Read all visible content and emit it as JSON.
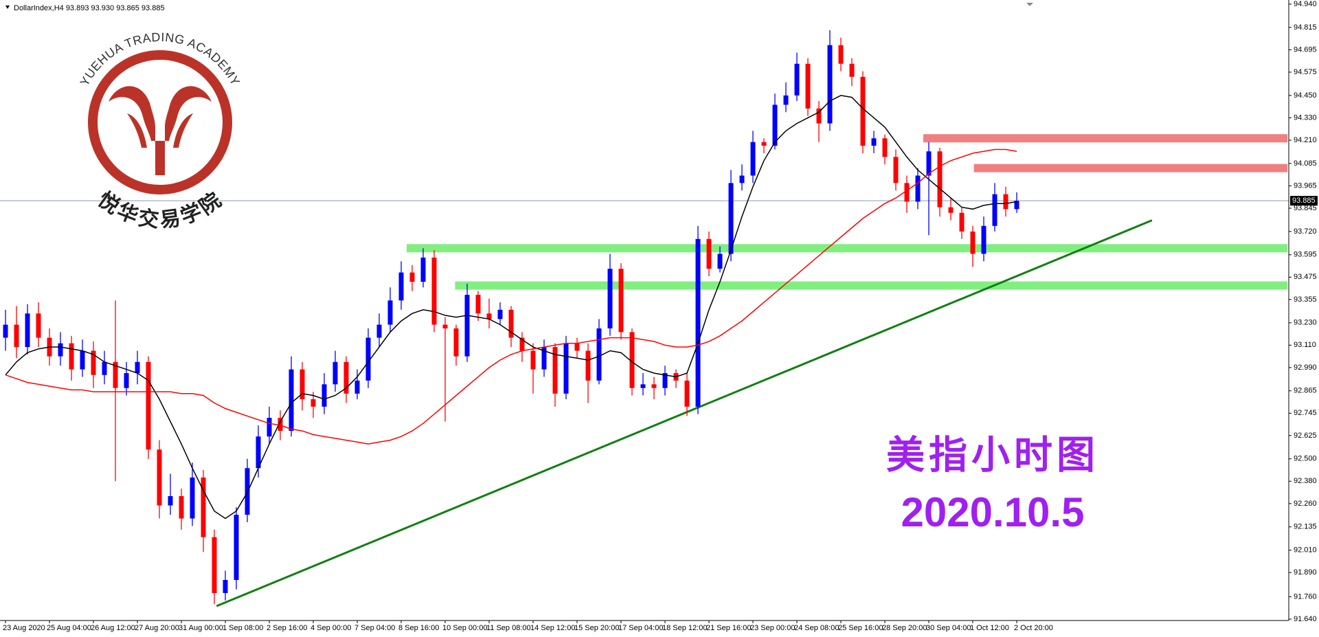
{
  "chart_data": {
    "type": "candlestick",
    "title": "DollarIndex,H4  93.893 93.930 93.865 93.885",
    "logo_text": "YUEHUA TRADING ACADEMY",
    "logo_text_cn": "悦华交易学院",
    "annotations": [
      "美指小时图",
      "2020.10.5"
    ],
    "up_color": "#0000ff",
    "down_color": "#ff0000",
    "grid": false,
    "ylim": [
      91.64,
      94.94
    ],
    "yticks": [
      {
        "value": 94.94,
        "label": "94.940"
      },
      94.815,
      94.695,
      94.575,
      {
        "value": 94.45,
        "label": "94.450"
      },
      {
        "value": 94.33,
        "label": "94.330"
      },
      {
        "value": 94.21,
        "label": "94.210"
      },
      94.085,
      93.965,
      93.845,
      {
        "value": 93.72,
        "label": "93.720"
      },
      93.595,
      93.475,
      93.355,
      {
        "value": 93.23,
        "label": "93.230"
      },
      {
        "value": 93.11,
        "label": "93.110"
      },
      {
        "value": 92.99,
        "label": "92.990"
      },
      92.865,
      92.745,
      92.625,
      {
        "value": 92.5,
        "label": "92.500"
      },
      {
        "value": 92.38,
        "label": "92.380"
      },
      {
        "value": 92.26,
        "label": "92.260"
      },
      92.135,
      {
        "value": 92.01,
        "label": "92.010"
      },
      {
        "value": 91.89,
        "label": "91.890"
      },
      {
        "value": 91.76,
        "label": "91.760"
      },
      {
        "value": 91.64,
        "label": "91.640"
      }
    ],
    "current_price": 93.885,
    "categories": [
      "23 Aug 2020",
      null,
      null,
      null,
      "25 Aug 04:00",
      null,
      null,
      null,
      "26 Aug 12:00",
      null,
      null,
      null,
      "27 Aug 20:00",
      null,
      null,
      null,
      "31 Aug 00:00",
      null,
      null,
      null,
      "1 Sep 08:00",
      null,
      null,
      null,
      "2 Sep 16:00",
      null,
      null,
      null,
      "4 Sep 00:00",
      null,
      null,
      null,
      "7 Sep 04:00",
      null,
      null,
      null,
      "8 Sep 16:00",
      null,
      null,
      null,
      "10 Sep 00:00",
      null,
      null,
      null,
      "11 Sep 08:00",
      null,
      null,
      null,
      "14 Sep 12:00",
      null,
      null,
      null,
      "15 Sep 20:00",
      null,
      null,
      null,
      "17 Sep 04:00",
      null,
      null,
      null,
      "18 Sep 12:00",
      null,
      null,
      null,
      "21 Sep 16:00",
      null,
      null,
      null,
      "23 Sep 00:00",
      null,
      null,
      null,
      "24 Sep 08:00",
      null,
      null,
      null,
      "25 Sep 16:00",
      null,
      null,
      null,
      "28 Sep 20:00",
      null,
      null,
      null,
      "30 Sep 04:00",
      null,
      null,
      null,
      "1 Oct 12:00",
      null,
      null,
      null,
      "2 Oct 20:00"
    ],
    "open": [
      93.15,
      93.22,
      93.1,
      93.28,
      93.15,
      93.05,
      93.12,
      92.98,
      93.08,
      92.95,
      93.02,
      92.88,
      92.96,
      93.02,
      92.55,
      92.25,
      92.3,
      92.18,
      92.4,
      92.08,
      91.78,
      91.85,
      92.2,
      92.45,
      92.62,
      92.72,
      92.65,
      92.98,
      92.82,
      92.78,
      92.9,
      93.02,
      92.85,
      92.92,
      93.15,
      93.22,
      93.35,
      93.5,
      93.45,
      93.58,
      93.22,
      93.2,
      93.05,
      93.38,
      93.28,
      93.25,
      93.3,
      93.15,
      93.08,
      92.98,
      93.1,
      92.85,
      93.12,
      93.08,
      92.92,
      93.2,
      93.52,
      93.18,
      92.88,
      92.9,
      92.88,
      92.96,
      92.92,
      92.78,
      93.68,
      93.52,
      93.6,
      93.98,
      94.02,
      94.2,
      94.18,
      94.4,
      94.45,
      94.62,
      94.38,
      94.3,
      94.72,
      94.62,
      94.55,
      94.18,
      94.22,
      94.12,
      93.98,
      93.88,
      94.02,
      94.15,
      93.85,
      93.82,
      93.72,
      93.6,
      93.75,
      93.92,
      93.84
    ],
    "high": [
      93.3,
      93.32,
      93.33,
      93.34,
      93.2,
      93.18,
      93.16,
      93.14,
      93.13,
      93.08,
      93.35,
      93.02,
      93.08,
      93.05,
      92.6,
      92.42,
      92.34,
      92.48,
      92.44,
      92.12,
      91.9,
      92.24,
      92.5,
      92.68,
      92.78,
      92.76,
      93.05,
      93.02,
      92.86,
      92.96,
      93.08,
      93.05,
      92.98,
      93.2,
      93.28,
      93.42,
      93.56,
      93.54,
      93.63,
      93.62,
      93.26,
      93.22,
      93.44,
      93.4,
      93.36,
      93.34,
      93.32,
      93.18,
      93.12,
      93.14,
      93.12,
      93.16,
      93.15,
      93.12,
      93.25,
      93.6,
      93.55,
      93.2,
      92.96,
      92.94,
      93.0,
      92.98,
      92.96,
      93.75,
      93.72,
      93.64,
      94.05,
      94.08,
      94.26,
      94.22,
      94.46,
      94.52,
      94.68,
      94.65,
      94.42,
      94.8,
      94.76,
      94.65,
      94.58,
      94.26,
      94.24,
      94.16,
      94.02,
      94.06,
      94.2,
      94.17,
      93.9,
      93.85,
      93.75,
      93.8,
      93.98,
      93.96,
      93.93
    ],
    "low": [
      93.08,
      93.04,
      93.06,
      93.1,
      93.0,
      93.0,
      92.92,
      92.94,
      92.88,
      92.9,
      92.38,
      92.84,
      92.9,
      92.5,
      92.18,
      92.2,
      92.12,
      92.14,
      92.0,
      91.72,
      91.74,
      91.8,
      92.16,
      92.4,
      92.58,
      92.6,
      92.62,
      92.76,
      92.72,
      92.74,
      92.86,
      92.8,
      92.82,
      92.88,
      93.1,
      93.18,
      93.3,
      93.4,
      93.42,
      93.18,
      92.7,
      93.0,
      93.02,
      93.24,
      93.2,
      93.22,
      93.1,
      93.02,
      92.85,
      92.94,
      92.78,
      92.82,
      93.04,
      92.8,
      92.9,
      93.16,
      93.14,
      92.84,
      92.84,
      92.82,
      92.84,
      92.88,
      92.73,
      92.74,
      93.48,
      93.5,
      93.56,
      93.94,
      93.98,
      94.14,
      94.16,
      94.36,
      94.42,
      94.34,
      94.2,
      94.26,
      94.58,
      94.5,
      94.14,
      94.14,
      94.08,
      93.94,
      93.82,
      93.84,
      93.7,
      93.8,
      93.78,
      93.68,
      93.53,
      93.56,
      93.72,
      93.8,
      93.82
    ],
    "close": [
      93.22,
      93.1,
      93.28,
      93.15,
      93.05,
      93.12,
      92.98,
      93.08,
      92.95,
      93.02,
      92.88,
      92.96,
      93.02,
      92.55,
      92.25,
      92.3,
      92.18,
      92.4,
      92.08,
      91.78,
      91.85,
      92.2,
      92.45,
      92.62,
      92.72,
      92.65,
      92.98,
      92.82,
      92.78,
      92.9,
      93.02,
      92.85,
      92.92,
      93.15,
      93.22,
      93.35,
      93.5,
      93.45,
      93.58,
      93.22,
      93.2,
      93.05,
      93.38,
      93.28,
      93.25,
      93.3,
      93.15,
      93.08,
      92.98,
      93.1,
      92.85,
      93.12,
      93.08,
      92.92,
      93.2,
      93.52,
      93.18,
      92.88,
      92.9,
      92.88,
      92.96,
      92.92,
      92.78,
      93.68,
      93.52,
      93.6,
      93.98,
      94.02,
      94.2,
      94.18,
      94.4,
      94.45,
      94.62,
      94.38,
      94.3,
      94.72,
      94.62,
      94.55,
      94.18,
      94.22,
      94.12,
      93.98,
      93.88,
      94.02,
      94.15,
      93.85,
      93.82,
      93.72,
      93.6,
      93.75,
      93.92,
      93.84,
      93.885
    ],
    "moving_averages": [
      {
        "color": "#000000",
        "values": [
          92.95,
          93.02,
          93.07,
          93.09,
          93.1,
          93.1,
          93.09,
          93.08,
          93.06,
          93.02,
          93.0,
          92.98,
          92.96,
          92.92,
          92.82,
          92.7,
          92.58,
          92.45,
          92.33,
          92.22,
          92.18,
          92.22,
          92.32,
          92.45,
          92.58,
          92.7,
          92.8,
          92.85,
          92.84,
          92.82,
          92.84,
          92.88,
          92.94,
          93.02,
          93.1,
          93.18,
          93.24,
          93.28,
          93.3,
          93.29,
          93.27,
          93.26,
          93.27,
          93.26,
          93.25,
          93.22,
          93.18,
          93.14,
          93.1,
          93.08,
          93.06,
          93.05,
          93.04,
          93.03,
          93.05,
          93.08,
          93.07,
          93.02,
          92.98,
          92.96,
          92.95,
          92.94,
          92.96,
          93.12,
          93.3,
          93.45,
          93.62,
          93.8,
          93.96,
          94.1,
          94.2,
          94.26,
          94.3,
          94.33,
          94.36,
          94.42,
          94.45,
          94.44,
          94.38,
          94.33,
          94.28,
          94.2,
          94.12,
          94.05,
          94.0,
          93.95,
          93.9,
          93.85,
          93.84,
          93.86,
          93.87,
          93.87,
          93.88
        ]
      },
      {
        "color": "#ff0000",
        "values": [
          92.95,
          92.93,
          92.91,
          92.9,
          92.89,
          92.88,
          92.87,
          92.87,
          92.86,
          92.86,
          92.86,
          92.86,
          92.86,
          92.86,
          92.86,
          92.86,
          92.85,
          92.85,
          92.84,
          92.8,
          92.77,
          92.75,
          92.73,
          92.71,
          92.69,
          92.68,
          92.66,
          92.65,
          92.63,
          92.62,
          92.61,
          92.6,
          92.59,
          92.58,
          92.59,
          92.6,
          92.62,
          92.65,
          92.69,
          92.74,
          92.79,
          92.84,
          92.89,
          92.94,
          92.99,
          93.03,
          93.06,
          93.08,
          93.09,
          93.1,
          93.11,
          93.12,
          93.12,
          93.13,
          93.14,
          93.15,
          93.15,
          93.15,
          93.14,
          93.13,
          93.11,
          93.1,
          93.1,
          93.11,
          93.13,
          93.16,
          93.2,
          93.24,
          93.29,
          93.34,
          93.39,
          93.44,
          93.49,
          93.54,
          93.59,
          93.64,
          93.69,
          93.74,
          93.79,
          93.83,
          93.87,
          93.9,
          93.94,
          93.98,
          94.03,
          94.07,
          94.1,
          94.12,
          94.14,
          94.15,
          94.16,
          94.16,
          94.15
        ]
      }
    ],
    "zones": [
      {
        "value": 93.63,
        "start": 36.5,
        "color": "#80ef80"
      },
      {
        "value": 93.43,
        "start": 40.9,
        "color": "#80ef80"
      },
      {
        "value": 94.22,
        "start": 83.5,
        "color": "#f08080"
      },
      {
        "value": 94.06,
        "start": 88.1,
        "color": "#f08080"
      }
    ],
    "trendline": {
      "x": [
        19.2,
        104.3
      ],
      "y": [
        91.71,
        93.78
      ],
      "color": "#108010"
    }
  }
}
